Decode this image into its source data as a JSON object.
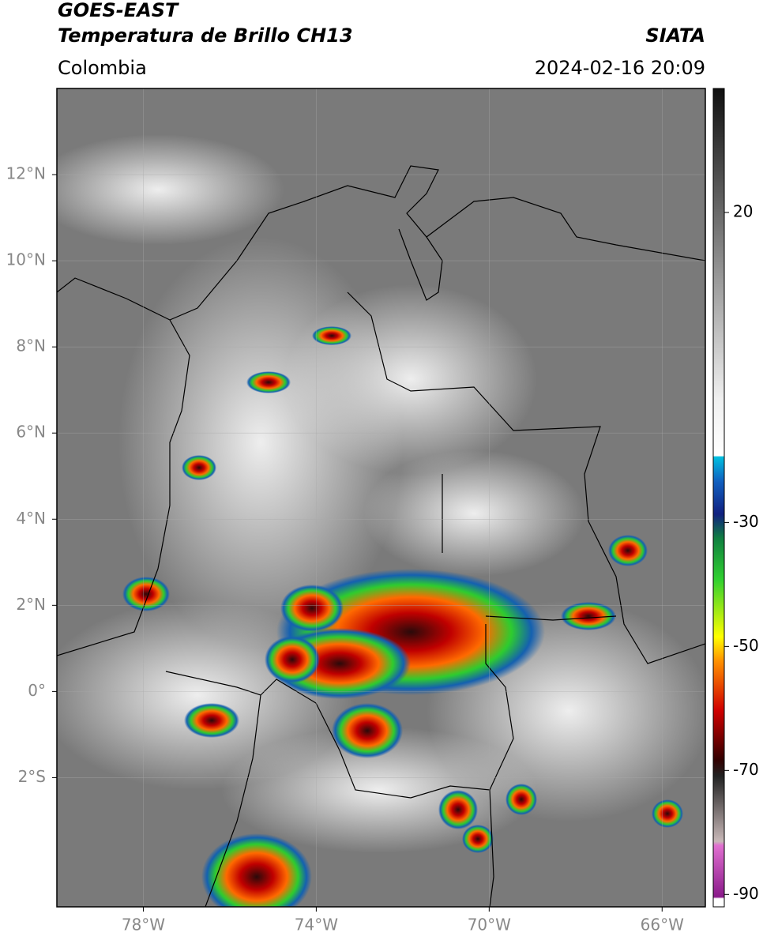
{
  "header": {
    "title": "GOES-EAST",
    "subtitle": "Temperatura de Brillo CH13",
    "source": "SIATA",
    "region": "Colombia",
    "datetime": "2024-02-16 20:09"
  },
  "map": {
    "xlim": [
      -80,
      -65
    ],
    "ylim": [
      -5,
      14
    ],
    "grid": true,
    "xticks": [
      {
        "value": -78,
        "label": "78°W"
      },
      {
        "value": -74,
        "label": "74°W"
      },
      {
        "value": -70,
        "label": "70°W"
      },
      {
        "value": -66,
        "label": "66°W"
      }
    ],
    "yticks": [
      {
        "value": 12,
        "label": "12°N"
      },
      {
        "value": 10,
        "label": "10°N"
      },
      {
        "value": 8,
        "label": "8°N"
      },
      {
        "value": 6,
        "label": "6°N"
      },
      {
        "value": 4,
        "label": "4°N"
      },
      {
        "value": 2,
        "label": "2°N"
      },
      {
        "value": 0,
        "label": "0°"
      },
      {
        "value": -2,
        "label": "2°S"
      }
    ]
  },
  "colorbar": {
    "lim": [
      -92,
      40
    ],
    "ticks": [
      20,
      -30,
      -50,
      -70,
      -90
    ]
  }
}
